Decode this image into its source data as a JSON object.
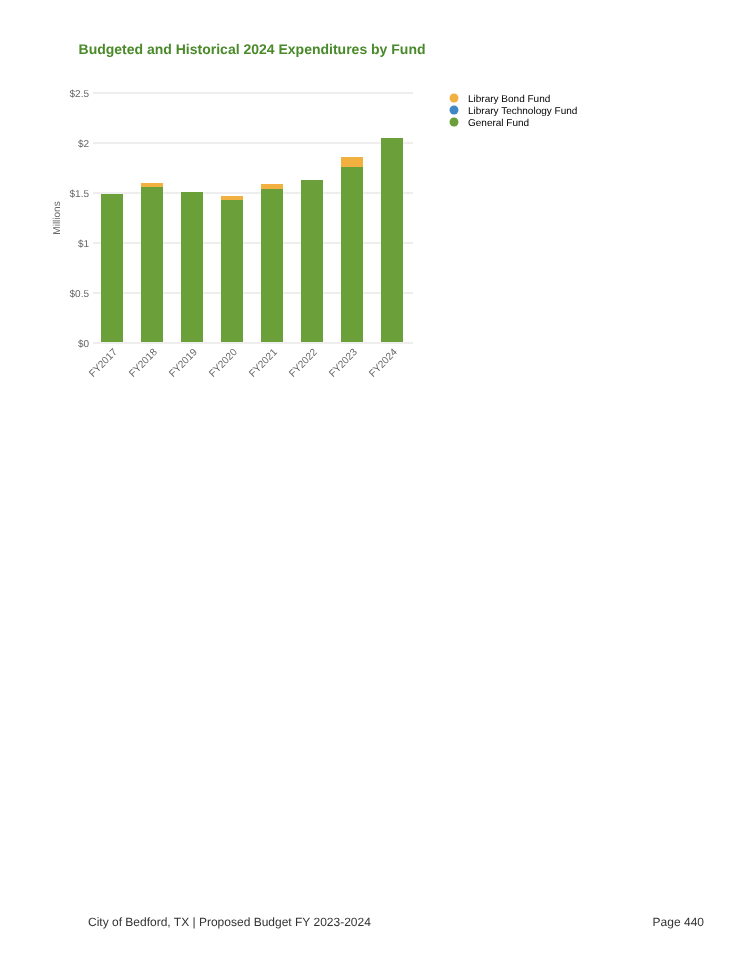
{
  "chart_data": {
    "type": "bar",
    "title": "Budgeted and Historical 2024 Expenditures by Fund",
    "ylabel": "Millions",
    "categories": [
      "FY2017",
      "FY2018",
      "FY2019",
      "FY2020",
      "FY2021",
      "FY2022",
      "FY2023",
      "FY2024"
    ],
    "series": [
      {
        "name": "General Fund",
        "color": "#6a9f3a",
        "values": [
          1.48,
          1.55,
          1.5,
          1.42,
          1.53,
          1.62,
          1.75,
          2.04
        ]
      },
      {
        "name": "Library Technology Fund",
        "color": "#3f88c5",
        "values": [
          0,
          0,
          0,
          0,
          0,
          0,
          0,
          0
        ]
      },
      {
        "name": "Library Bond Fund",
        "color": "#f2b040",
        "values": [
          0,
          0.04,
          0,
          0.04,
          0.05,
          0,
          0.1,
          0
        ]
      }
    ],
    "stacked": true,
    "ylim": [
      0,
      2.5
    ],
    "yticks": [
      {
        "value": 0,
        "label": "$0"
      },
      {
        "value": 0.5,
        "label": "$0.5"
      },
      {
        "value": 1,
        "label": "$1"
      },
      {
        "value": 1.5,
        "label": "$1.5"
      },
      {
        "value": 2,
        "label": "$2"
      },
      {
        "value": 2.5,
        "label": "$2.5"
      }
    ],
    "grid": "y",
    "legend": "right",
    "annotations": [
      "City of Bedford, TX | Proposed Budget FY 2023-2024",
      "Page 440"
    ]
  }
}
